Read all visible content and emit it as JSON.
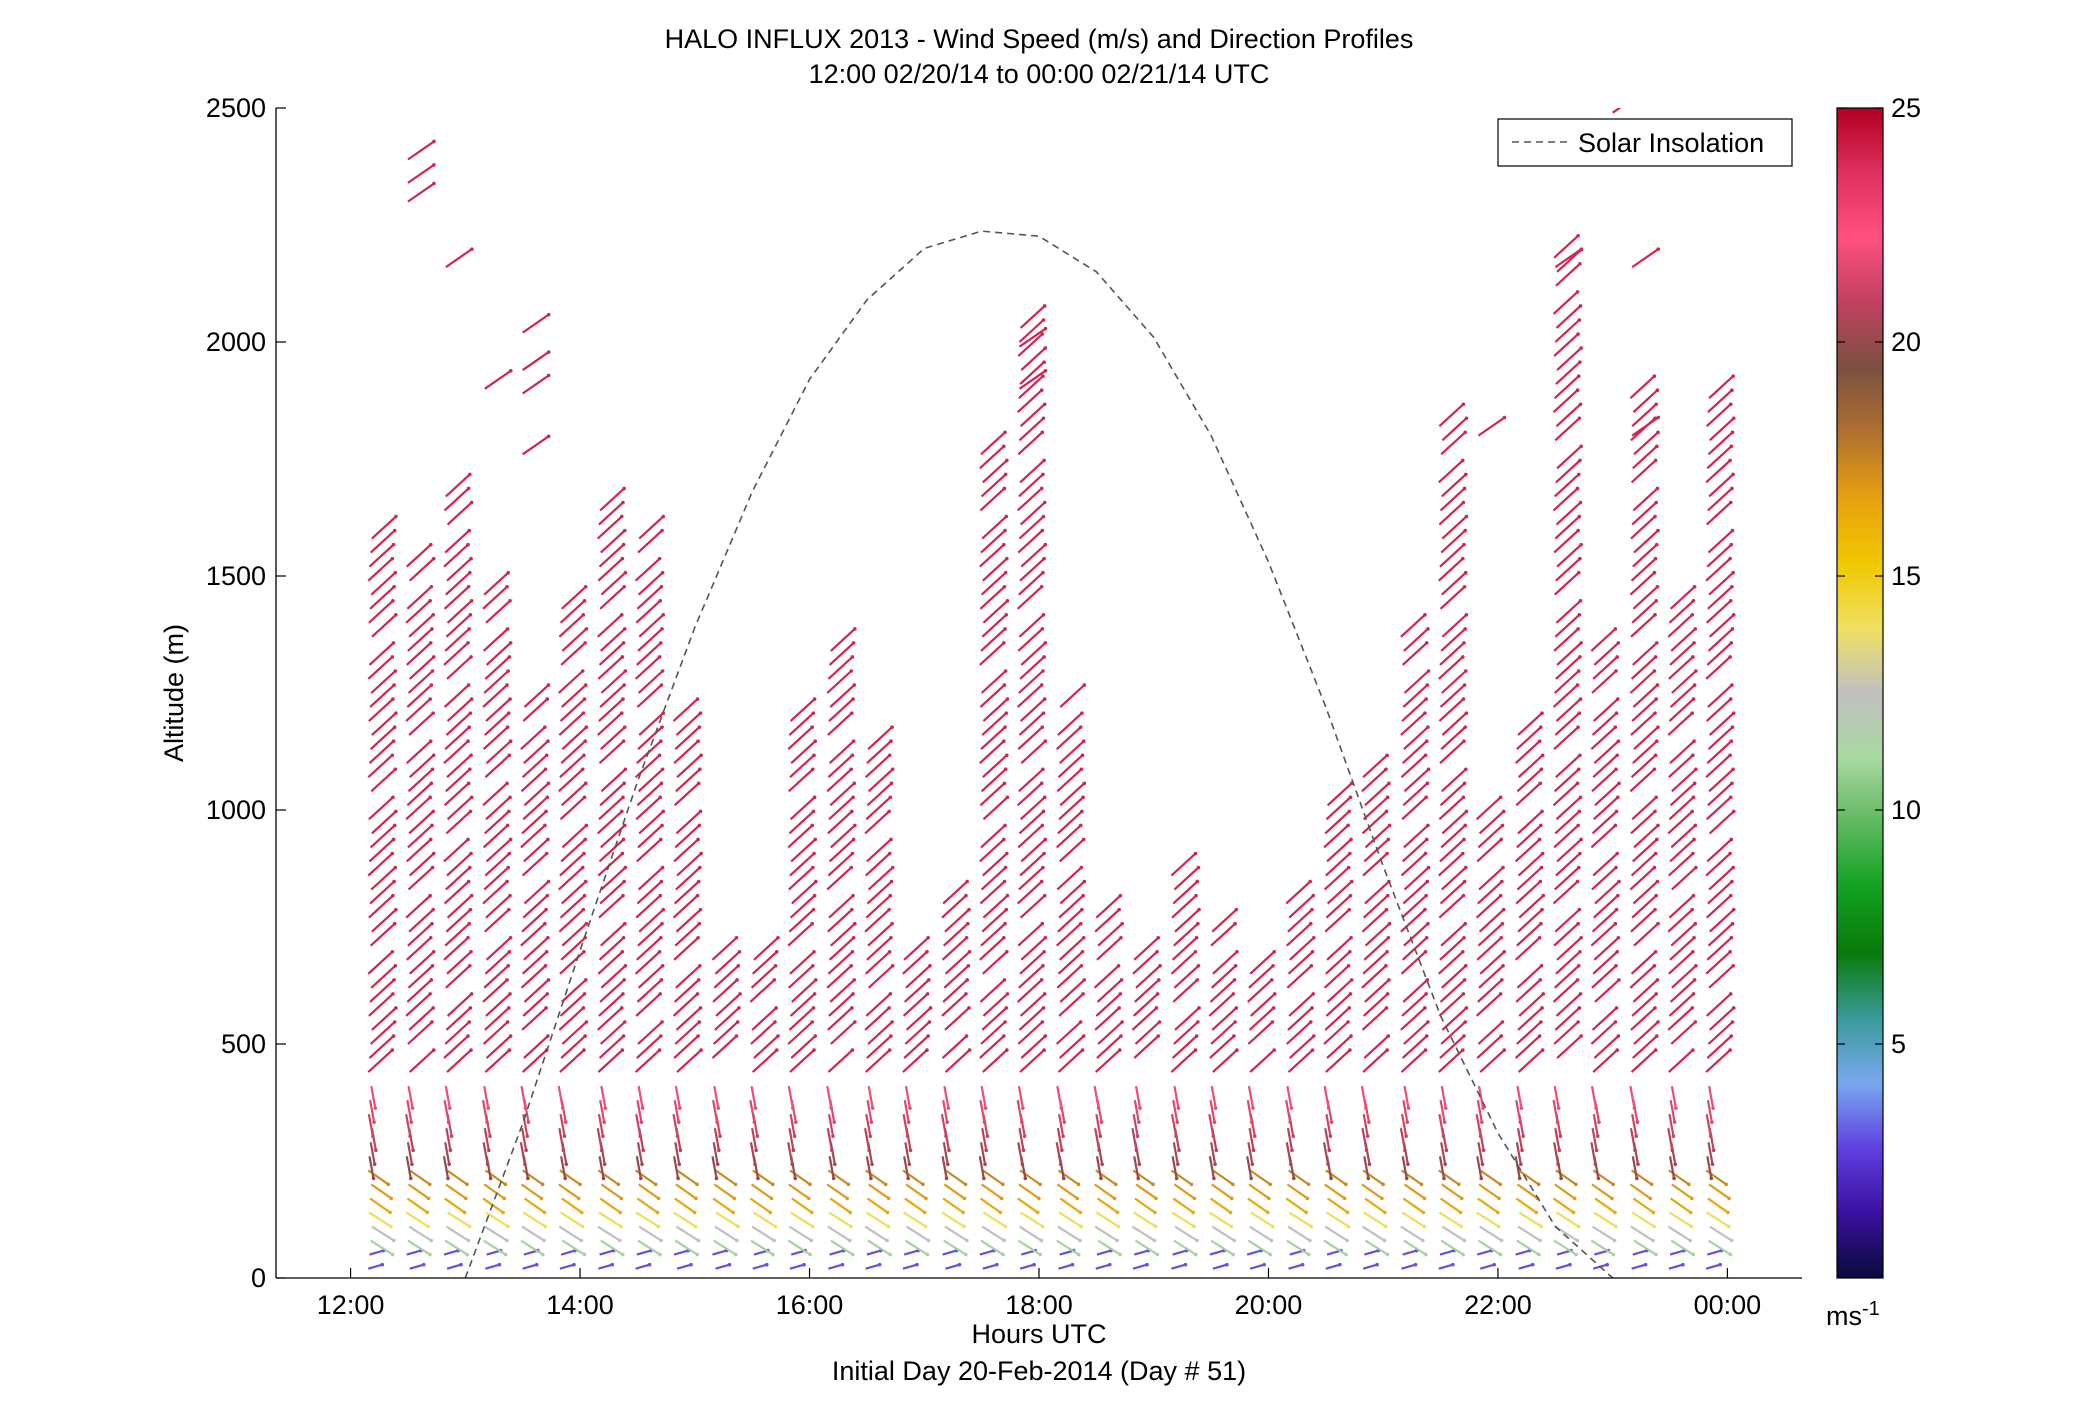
{
  "chart_data": {
    "type": "scatter",
    "title": "HALO INFLUX 2013 - Wind Speed (m/s) and Direction Profiles",
    "subtitle": "12:00 02/20/14 to 00:00 02/21/14  UTC",
    "xlabel": "Hours UTC",
    "xlabel2": "Initial Day 20-Feb-2014 (Day # 51)",
    "ylabel": "Altitude (m)",
    "xlim": [
      11.35,
      24.65
    ],
    "ylim": [
      0,
      2500
    ],
    "xticks": [
      12,
      14,
      16,
      18,
      20,
      22,
      24
    ],
    "xtick_labels": [
      "12:00",
      "14:00",
      "16:00",
      "18:00",
      "20:00",
      "22:00",
      "00:00"
    ],
    "yticks": [
      0,
      500,
      1000,
      1500,
      2000,
      2500
    ],
    "ytick_labels": [
      "0",
      "500",
      "1000",
      "1500",
      "2000",
      "2500"
    ],
    "legend": {
      "label": "Solar Insolation",
      "placement": "top-right",
      "style": "dashed",
      "color": "#555555"
    },
    "colorbar": {
      "range": [
        0,
        25
      ],
      "ticks": [
        5,
        10,
        15,
        20,
        25
      ],
      "tick_labels": [
        "5",
        "10",
        "15",
        "20",
        "25"
      ],
      "unit_label": "ms",
      "unit_exponent": "-1",
      "stops": [
        "#0a0a3c",
        "#3a10a0",
        "#6040e0",
        "#78a8f0",
        "#3a9a9a",
        "#0a7a0a",
        "#10a020",
        "#60b860",
        "#a8d8a0",
        "#c0c0c0",
        "#f0e060",
        "#f0c800",
        "#e8a010",
        "#b07030",
        "#7a5040",
        "#c04060",
        "#ff5080",
        "#e03060",
        "#b00020"
      ]
    },
    "solar_insolation": {
      "hours": [
        13.0,
        13.5,
        14.0,
        14.5,
        15.0,
        15.5,
        16.0,
        16.5,
        17.0,
        17.5,
        18.0,
        18.5,
        19.0,
        19.5,
        20.0,
        20.5,
        21.0,
        21.5,
        22.0,
        22.5,
        23.0
      ],
      "altitude": [
        0,
        330,
        700,
        1060,
        1390,
        1680,
        1920,
        2090,
        2200,
        2237,
        2226,
        2150,
        2010,
        1800,
        1530,
        1220,
        880,
        560,
        310,
        110,
        0
      ]
    },
    "profiles": {
      "times": [
        12.17,
        12.5,
        12.83,
        13.17,
        13.5,
        13.83,
        14.17,
        14.5,
        14.83,
        15.17,
        15.5,
        15.83,
        16.17,
        16.5,
        16.83,
        17.17,
        17.5,
        17.83,
        18.17,
        18.5,
        18.83,
        19.17,
        19.5,
        19.83,
        20.17,
        20.5,
        20.83,
        21.17,
        21.5,
        21.83,
        22.17,
        22.5,
        22.83,
        23.17,
        23.5,
        23.83
      ],
      "tops": [
        1600,
        1520,
        1690,
        1480,
        1240,
        1440,
        1640,
        1590,
        1200,
        680,
        700,
        1190,
        1360,
        1150,
        690,
        840,
        1770,
        2040,
        1240,
        780,
        690,
        890,
        740,
        660,
        820,
        1050,
        1090,
        1390,
        1820,
        990,
        1160,
        2180,
        1360,
        1900,
        1470,
        1900
      ],
      "surface_speed_ms": 3,
      "near_surface_speed_ms": 10,
      "low_level_speed_ms": 16,
      "mid_level_speed_ms": 20,
      "upper_level_speed_ms": 24,
      "upper_direction": "southwesterly",
      "low_level_direction": "northwesterly"
    },
    "sparse_upper_level_barbs": [
      {
        "hour": 12.5,
        "altitude": 2390
      },
      {
        "hour": 12.5,
        "altitude": 2340
      },
      {
        "hour": 12.5,
        "altitude": 2300
      },
      {
        "hour": 12.83,
        "altitude": 2160
      },
      {
        "hour": 13.17,
        "altitude": 1900
      },
      {
        "hour": 13.5,
        "altitude": 2020
      },
      {
        "hour": 13.5,
        "altitude": 1940
      },
      {
        "hour": 13.5,
        "altitude": 1890
      },
      {
        "hour": 13.5,
        "altitude": 1760
      },
      {
        "hour": 17.83,
        "altitude": 1990
      },
      {
        "hour": 17.83,
        "altitude": 1900
      },
      {
        "hour": 22.5,
        "altitude": 2160
      },
      {
        "hour": 23.17,
        "altitude": 2160
      },
      {
        "hour": 23.17,
        "altitude": 1800
      },
      {
        "hour": 21.83,
        "altitude": 1800
      },
      {
        "hour": 23.0,
        "altitude": 2490
      }
    ]
  }
}
